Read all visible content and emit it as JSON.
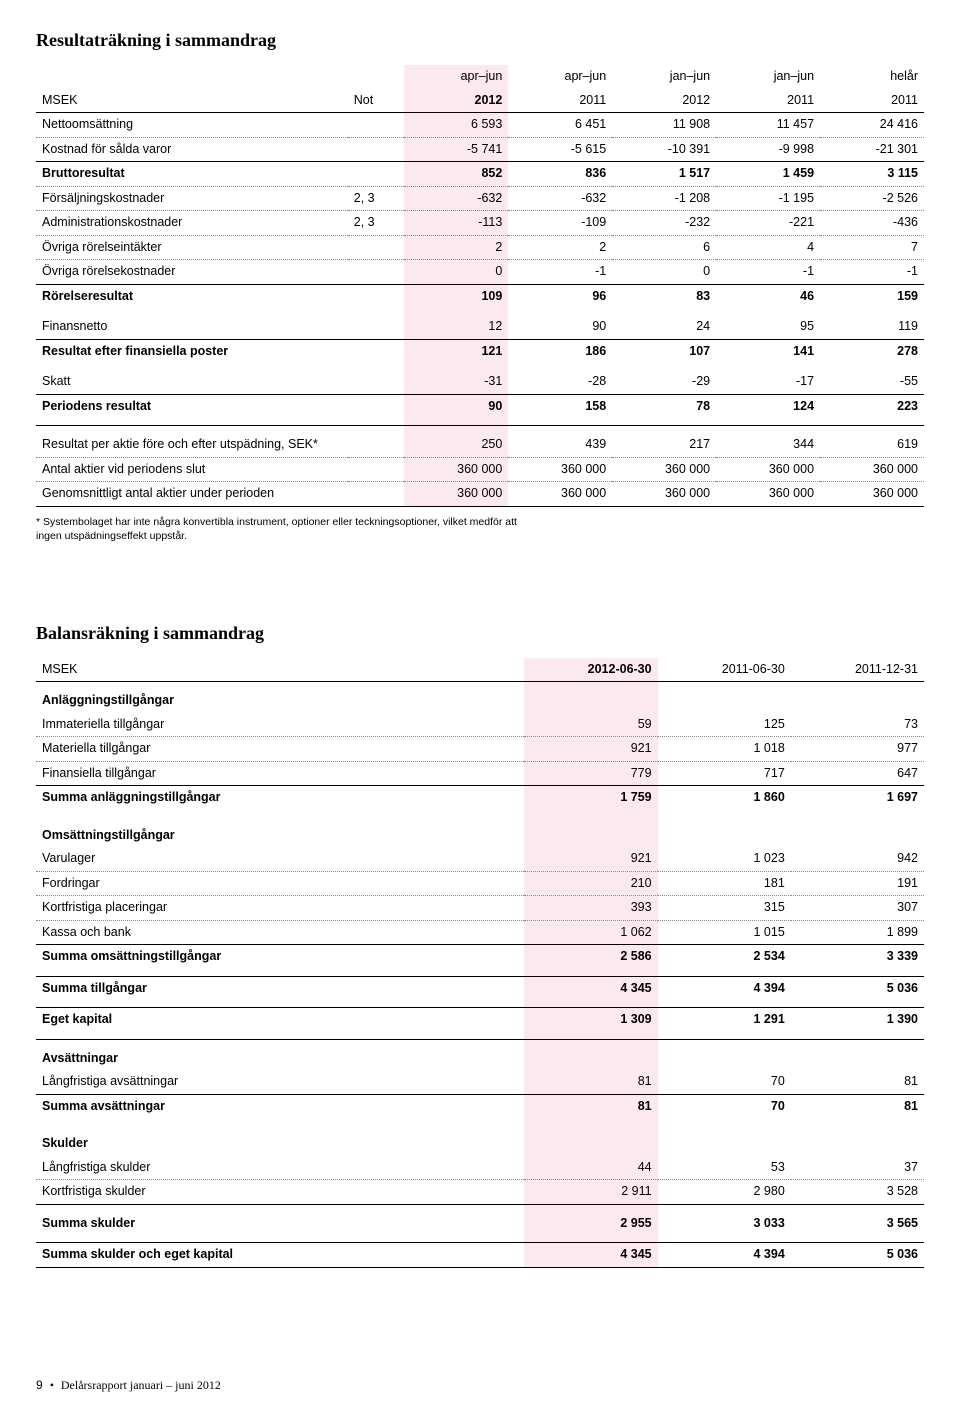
{
  "colors": {
    "highlight_bg": "#fce8ef",
    "text": "#000000",
    "dotted_border": "#888888",
    "solid_border": "#000000",
    "page_bg": "#ffffff"
  },
  "fonts": {
    "title_family": "Georgia, serif",
    "body_family": "Arial, Helvetica, sans-serif",
    "title_size_pt": 14,
    "body_size_pt": 9
  },
  "income": {
    "title": "Resultaträkning i sammandrag",
    "col_widths_pct": [
      33,
      6,
      11,
      11,
      11,
      11,
      11
    ],
    "hl_col_index": 2,
    "header1": [
      "",
      "",
      "apr–jun",
      "apr–jun",
      "jan–jun",
      "jan–jun",
      "helår"
    ],
    "header2": [
      "MSEK",
      "Not",
      "2012",
      "2011",
      "2012",
      "2011",
      "2011"
    ],
    "rows": [
      {
        "label": "Nettoomsättning",
        "note": "",
        "c": [
          "6 593",
          "6 451",
          "11 908",
          "11 457",
          "24 416"
        ],
        "border": "dot"
      },
      {
        "label": "Kostnad för sålda varor",
        "note": "",
        "c": [
          "-5 741",
          "-5 615",
          "-10 391",
          "-9 998",
          "-21 301"
        ],
        "border": "thin"
      },
      {
        "label": "Bruttoresultat",
        "note": "",
        "c": [
          "852",
          "836",
          "1 517",
          "1 459",
          "3 115"
        ],
        "bold": true,
        "border": "dot"
      },
      {
        "label": "Försäljningskostnader",
        "note": "2, 3",
        "c": [
          "-632",
          "-632",
          "-1 208",
          "-1 195",
          "-2 526"
        ],
        "border": "dot"
      },
      {
        "label": "Administrationskostnader",
        "note": "2, 3",
        "c": [
          "-113",
          "-109",
          "-232",
          "-221",
          "-436"
        ],
        "border": "dot"
      },
      {
        "label": "Övriga rörelseintäkter",
        "note": "",
        "c": [
          "2",
          "2",
          "6",
          "4",
          "7"
        ],
        "border": "dot"
      },
      {
        "label": "Övriga rörelsekostnader",
        "note": "",
        "c": [
          "0",
          "-1",
          "0",
          "-1",
          "-1"
        ],
        "border": "thin"
      },
      {
        "label": "Rörelseresultat",
        "note": "",
        "c": [
          "109",
          "96",
          "83",
          "46",
          "159"
        ],
        "bold": true,
        "border": "none",
        "pad_bottom": true
      },
      {
        "label": "Finansnetto",
        "note": "",
        "c": [
          "12",
          "90",
          "24",
          "95",
          "119"
        ],
        "border": "thin"
      },
      {
        "label": "Resultat efter finansiella poster",
        "note": "",
        "c": [
          "121",
          "186",
          "107",
          "141",
          "278"
        ],
        "bold": true,
        "border": "none",
        "pad_bottom": true
      },
      {
        "label": "Skatt",
        "note": "",
        "c": [
          "-31",
          "-28",
          "-29",
          "-17",
          "-55"
        ],
        "border": "thin"
      },
      {
        "label": "Periodens resultat",
        "note": "",
        "c": [
          "90",
          "158",
          "78",
          "124",
          "223"
        ],
        "bold": true,
        "border": "thin",
        "pad_bottom": true
      },
      {
        "label": "Resultat per aktie före och efter utspädning, SEK*",
        "note": "",
        "c": [
          "250",
          "439",
          "217",
          "344",
          "619"
        ],
        "border": "dot",
        "pad_top": true
      },
      {
        "label": "Antal aktier vid periodens slut",
        "note": "",
        "c": [
          "360 000",
          "360 000",
          "360 000",
          "360 000",
          "360 000"
        ],
        "border": "dot"
      },
      {
        "label": "Genomsnittligt antal aktier under perioden",
        "note": "",
        "c": [
          "360 000",
          "360 000",
          "360 000",
          "360 000",
          "360 000"
        ],
        "border": "thin"
      }
    ],
    "footnote": "* Systembolaget har inte några konvertibla instrument, optioner eller teckningsoptioner, vilket medför att ingen utspädningseffekt uppstår."
  },
  "balance": {
    "title": "Balansräkning i sammandrag",
    "col_widths_pct": [
      55,
      15,
      15,
      15
    ],
    "hl_col_index": 1,
    "header": [
      "MSEK",
      "2012-06-30",
      "2011-06-30",
      "2011-12-31"
    ],
    "rows": [
      {
        "label": "Anläggningstillgångar",
        "section": true
      },
      {
        "label": "Immateriella tillgångar",
        "c": [
          "59",
          "125",
          "73"
        ],
        "border": "dot"
      },
      {
        "label": "Materiella tillgångar",
        "c": [
          "921",
          "1 018",
          "977"
        ],
        "border": "dot"
      },
      {
        "label": "Finansiella tillgångar",
        "c": [
          "779",
          "717",
          "647"
        ],
        "border": "thin"
      },
      {
        "label": "Summa anläggningstillgångar",
        "c": [
          "1 759",
          "1 860",
          "1 697"
        ],
        "bold": true,
        "border": "none",
        "pad_bottom": true
      },
      {
        "label": "Omsättningstillgångar",
        "section": true
      },
      {
        "label": "Varulager",
        "c": [
          "921",
          "1 023",
          "942"
        ],
        "border": "dot"
      },
      {
        "label": "Fordringar",
        "c": [
          "210",
          "181",
          "191"
        ],
        "border": "dot"
      },
      {
        "label": "Kortfristiga placeringar",
        "c": [
          "393",
          "315",
          "307"
        ],
        "border": "dot"
      },
      {
        "label": "Kassa och bank",
        "c": [
          "1 062",
          "1 015",
          "1 899"
        ],
        "border": "thin"
      },
      {
        "label": "Summa omsättningstillgångar",
        "c": [
          "2 586",
          "2 534",
          "3 339"
        ],
        "bold": true,
        "border": "thin",
        "pad_bottom": true
      },
      {
        "label": "Summa tillgångar",
        "c": [
          "4 345",
          "4 394",
          "5 036"
        ],
        "bold": true,
        "border": "thin",
        "pad_bottom": true
      },
      {
        "label": "Eget kapital",
        "c": [
          "1 309",
          "1 291",
          "1 390"
        ],
        "bold": true,
        "border": "thin",
        "pad_bottom": true
      },
      {
        "label": "Avsättningar",
        "section": true
      },
      {
        "label": "Långfristiga avsättningar",
        "c": [
          "81",
          "70",
          "81"
        ],
        "border": "thin"
      },
      {
        "label": "Summa avsättningar",
        "c": [
          "81",
          "70",
          "81"
        ],
        "bold": true,
        "border": "none",
        "pad_bottom": true
      },
      {
        "label": "Skulder",
        "section": true
      },
      {
        "label": "Långfristiga skulder",
        "c": [
          "44",
          "53",
          "37"
        ],
        "border": "dot"
      },
      {
        "label": "Kortfristiga skulder",
        "c": [
          "2 911",
          "2 980",
          "3 528"
        ],
        "border": "thin"
      },
      {
        "label": "Summa skulder",
        "c": [
          "2 955",
          "3 033",
          "3 565"
        ],
        "bold": true,
        "border": "thin",
        "pad_top": true,
        "pad_bottom": true
      },
      {
        "label": "Summa skulder och eget kapital",
        "c": [
          "4 345",
          "4 394",
          "5 036"
        ],
        "bold": true,
        "border": "thin"
      }
    ]
  },
  "footer": {
    "page_num": "9",
    "text": "Delårsrapport januari – juni 2012"
  }
}
